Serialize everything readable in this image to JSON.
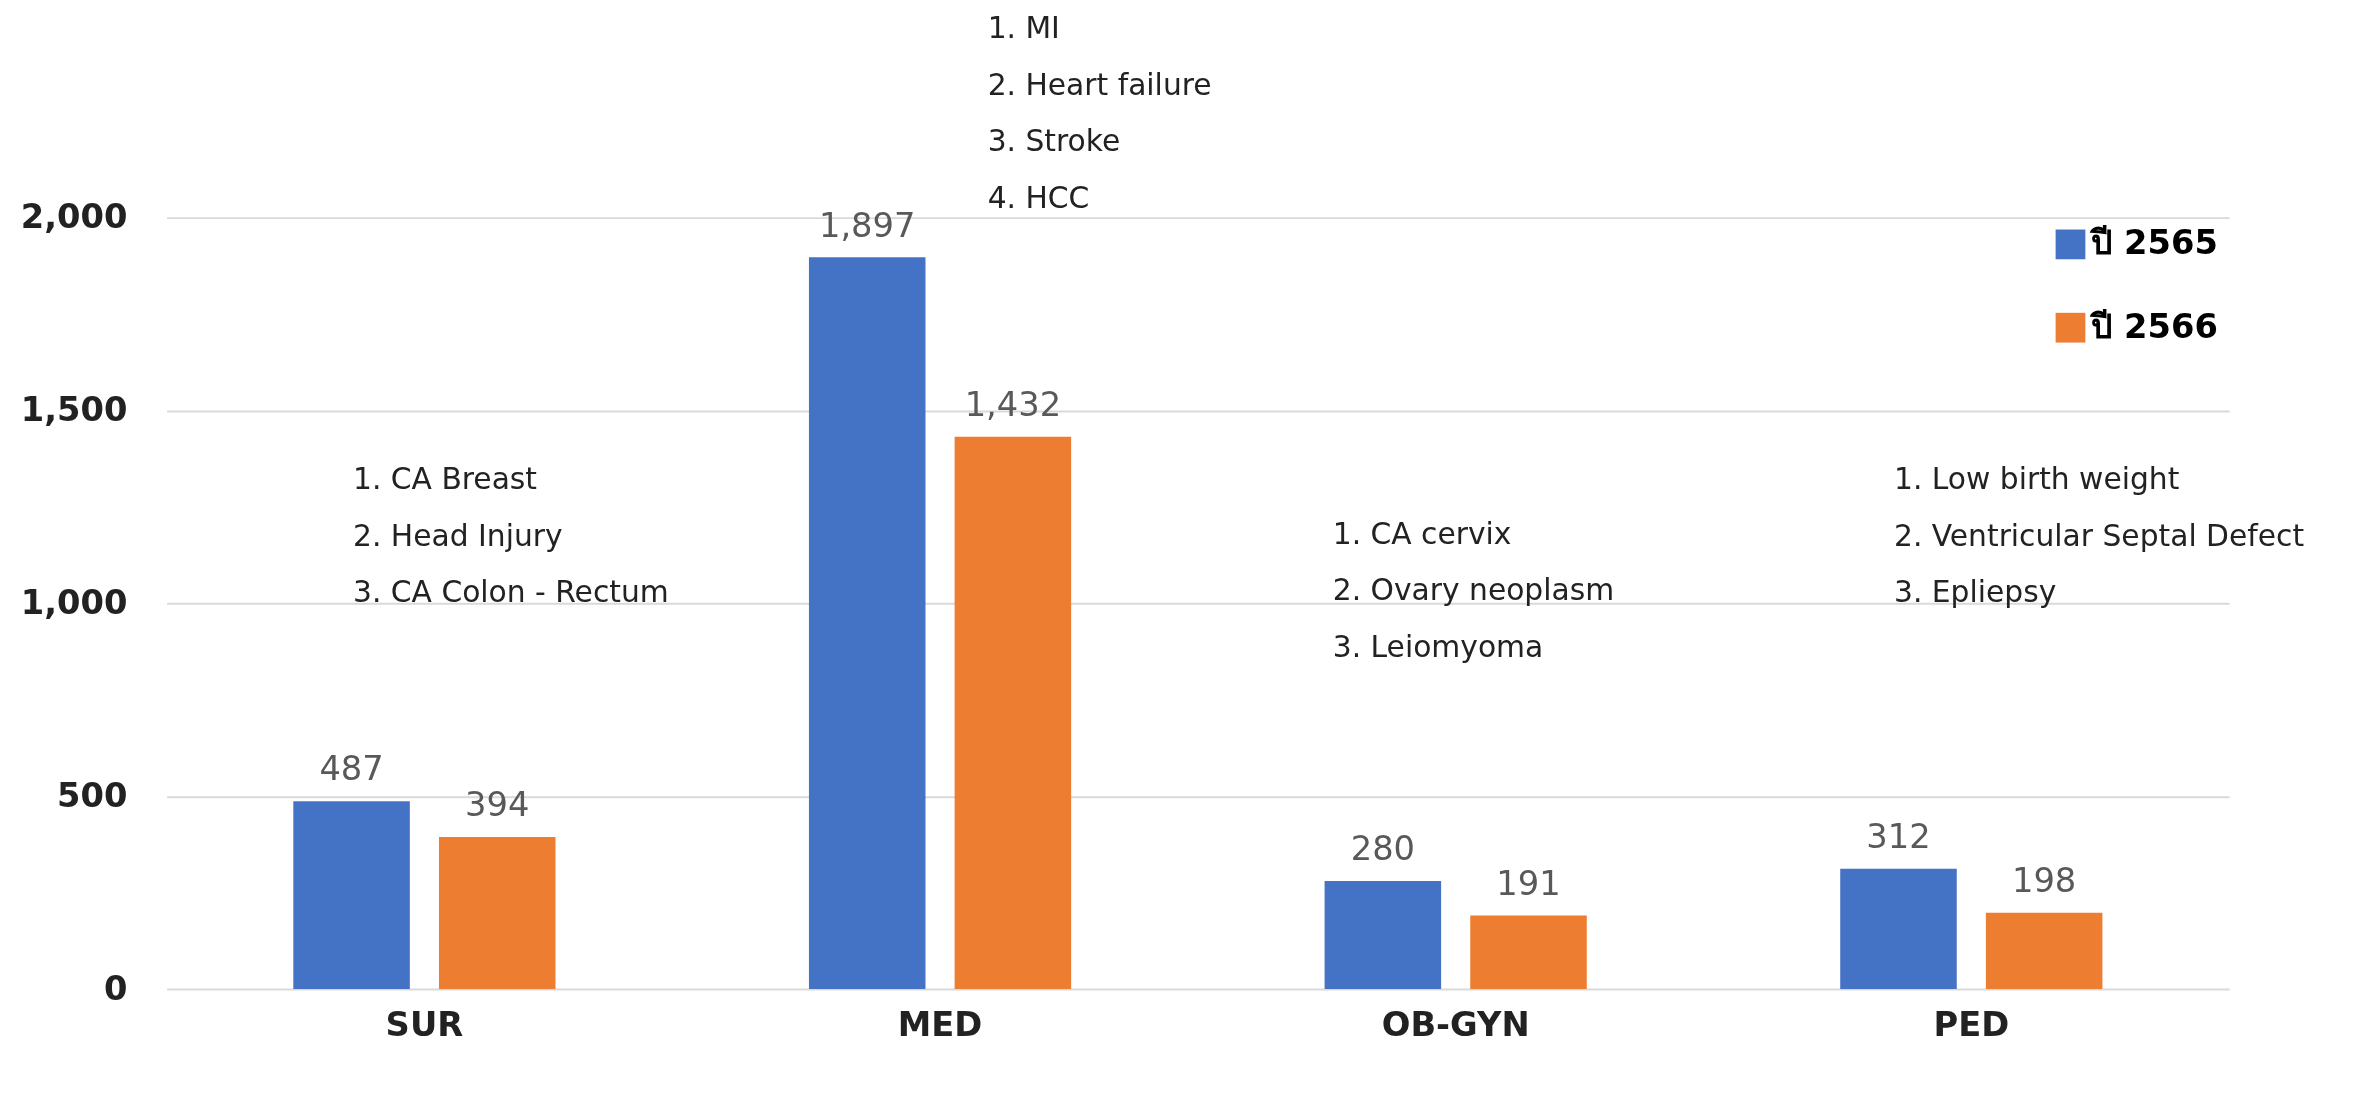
{
  "chart_data": {
    "type": "bar",
    "categories": [
      "SUR",
      "MED",
      "OB-GYN",
      "PED"
    ],
    "series": [
      {
        "name": "ปี 2565",
        "color": "#4472c4",
        "values": [
          487,
          1897,
          280,
          312
        ]
      },
      {
        "name": "ปี 2566",
        "color": "#ed7d31",
        "values": [
          394,
          1432,
          191,
          198
        ]
      }
    ],
    "ylim": [
      0,
      2000
    ],
    "yticks": [
      {
        "value": 0,
        "label": "0"
      },
      {
        "value": 500,
        "label": "500"
      },
      {
        "value": 1000,
        "label": "1,000"
      },
      {
        "value": 1500,
        "label": "1,500"
      },
      {
        "value": 2000,
        "label": "2,000"
      }
    ],
    "grid": "y",
    "legend": "top right",
    "value_labels": [
      [
        "487",
        "1,897",
        "280",
        "312"
      ],
      [
        "394",
        "1,432",
        "191",
        "198"
      ]
    ],
    "annotations": [
      "1. CA Breast\n2. Head Injury\n3. CA Colon - Rectum",
      "1. MI\n2. Heart failure\n3. Stroke\n4. HCC",
      "1. CA cervix\n2. Ovary neoplasm\n3. Leiomyoma",
      "1. Low birth weight\n2. Ventricular Septal Defect\n3. Epliepsy"
    ]
  }
}
